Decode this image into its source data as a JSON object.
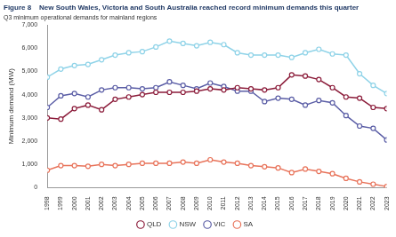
{
  "chart_data": {
    "type": "line",
    "title": "Figure 8    New South Wales, Victoria and South Australia reached record minimum demands this quarter",
    "subtitle": "Q3 minimum operational demands for mainland regions",
    "y_label": "Minimum demand (MW)",
    "categories": [
      "1998",
      "1999",
      "2000",
      "2001",
      "2002",
      "2003",
      "2004",
      "2005",
      "2006",
      "2007",
      "2008",
      "2009",
      "2010",
      "2011",
      "2012",
      "2013",
      "2014",
      "2015",
      "2016",
      "2017",
      "2018",
      "2019",
      "2020",
      "2021",
      "2022",
      "2023"
    ],
    "series": [
      {
        "name": "QLD",
        "color": "#8c1d3b",
        "marker": "circle",
        "line_style": "solid",
        "values": [
          3000,
          2950,
          3400,
          3550,
          3350,
          3800,
          3900,
          4000,
          4100,
          4100,
          4100,
          4150,
          4250,
          4200,
          4300,
          4250,
          4200,
          4300,
          4850,
          4800,
          4650,
          4300,
          3900,
          3850,
          3450,
          3400
        ]
      },
      {
        "name": "NSW",
        "color": "#8fd3e8",
        "marker": "circle",
        "line_style": "solid",
        "values": [
          4750,
          5100,
          5250,
          5300,
          5500,
          5700,
          5800,
          5850,
          6050,
          6300,
          6200,
          6100,
          6250,
          6150,
          5800,
          5700,
          5700,
          5700,
          5600,
          5800,
          5950,
          5750,
          5700,
          4900,
          4400,
          4050
        ]
      },
      {
        "name": "VIC",
        "color": "#5b5ea6",
        "marker": "circle",
        "line_style": "solid",
        "values": [
          3450,
          3950,
          4050,
          3900,
          4200,
          4300,
          4300,
          4250,
          4300,
          4550,
          4400,
          4250,
          4500,
          4350,
          4150,
          4150,
          3700,
          3850,
          3800,
          3550,
          3750,
          3650,
          3100,
          2650,
          2550,
          2050
        ]
      },
      {
        "name": "SA",
        "color": "#e8735a",
        "marker": "circle",
        "line_style": "solid",
        "values": [
          750,
          950,
          950,
          920,
          1000,
          950,
          1000,
          1050,
          1050,
          1050,
          1100,
          1050,
          1200,
          1100,
          1050,
          950,
          900,
          850,
          650,
          800,
          700,
          600,
          400,
          250,
          150,
          50
        ]
      }
    ],
    "ylim": [
      0,
      7000
    ],
    "yticks": [
      0,
      {
        "value": 1000,
        "label": "1,000"
      },
      {
        "value": 2000,
        "label": "2,000"
      },
      {
        "value": 3000,
        "label": "3,000"
      },
      {
        "value": 4000,
        "label": "4,000"
      },
      {
        "value": 5000,
        "label": "5,000"
      },
      {
        "value": 6000,
        "label": "6,000"
      },
      {
        "value": 7000,
        "label": "7,000"
      }
    ],
    "grid": false,
    "legend": "bottom"
  }
}
